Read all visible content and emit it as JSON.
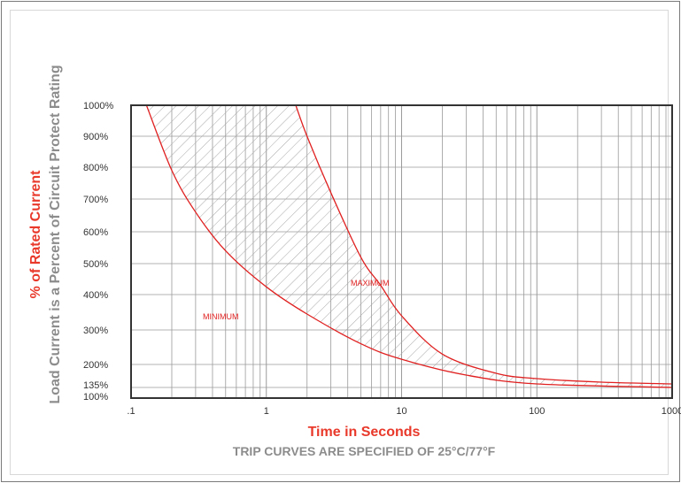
{
  "chart_data": {
    "type": "area",
    "subtitle": "TRIP CURVES ARE SPECIFIED OF 25°C/77°F",
    "xlabel": "Time in Seconds",
    "ylabel": "% of Rated Current",
    "ylabel_secondary": "Load Current is a Percent of Circuit Protect Rating",
    "x_scale": "log",
    "xlim": [
      0.1,
      1000
    ],
    "ylim": [
      100,
      1000
    ],
    "x_ticks": [
      ".1",
      "1",
      "10",
      "100",
      "1000"
    ],
    "y_ticks": [
      "1000%",
      "900%",
      "800%",
      "700%",
      "600%",
      "500%",
      "400%",
      "300%",
      "200%",
      "135%",
      "100%"
    ],
    "y_tick_values": [
      1000,
      900,
      800,
      700,
      600,
      500,
      400,
      300,
      200,
      135,
      100
    ],
    "grid": true,
    "annotations": [
      "MINIMUM",
      "MAXIMUM"
    ],
    "series": [
      {
        "name": "MINIMUM",
        "x": [
          0.13,
          0.2,
          0.3,
          0.5,
          1,
          2,
          5,
          10,
          30,
          100,
          1000
        ],
        "y": [
          1000,
          790,
          660,
          540,
          425,
          345,
          260,
          215,
          170,
          145,
          135
        ]
      },
      {
        "name": "MAXIMUM",
        "x": [
          1.65,
          2,
          3,
          5,
          7,
          10,
          20,
          50,
          100,
          300,
          1000
        ],
        "y": [
          1000,
          900,
          720,
          520,
          430,
          340,
          230,
          175,
          160,
          150,
          145
        ]
      }
    ],
    "colors": {
      "curve": "#e02020",
      "axis_title": "#e8392b",
      "secondary_title": "#8c8c8c",
      "grid": "#9a9a9a",
      "hatch": "#a8a8a8"
    }
  }
}
